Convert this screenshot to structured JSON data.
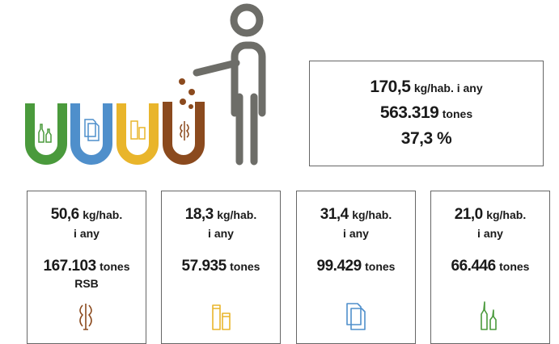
{
  "summary": {
    "rate": "170,5",
    "rate_unit": "kg/hab. i any",
    "tonnage": "563.319",
    "tonnage_unit": "tones",
    "share": "37,3 %"
  },
  "cards": [
    {
      "rate": "50,6",
      "rate_unit": "kg/hab.",
      "rate_period": "i any",
      "tonnage": "167.103",
      "tonnage_unit": "tones",
      "note": "RSB"
    },
    {
      "rate": "18,3",
      "rate_unit": "kg/hab.",
      "rate_period": "i any",
      "tonnage": "57.935",
      "tonnage_unit": "tones"
    },
    {
      "rate": "31,4",
      "rate_unit": "kg/hab.",
      "rate_period": "i any",
      "tonnage": "99.429",
      "tonnage_unit": "tones"
    },
    {
      "rate": "21,0",
      "rate_unit": "kg/hab.",
      "rate_period": "i any",
      "tonnage": "66.446",
      "tonnage_unit": "tones"
    }
  ]
}
